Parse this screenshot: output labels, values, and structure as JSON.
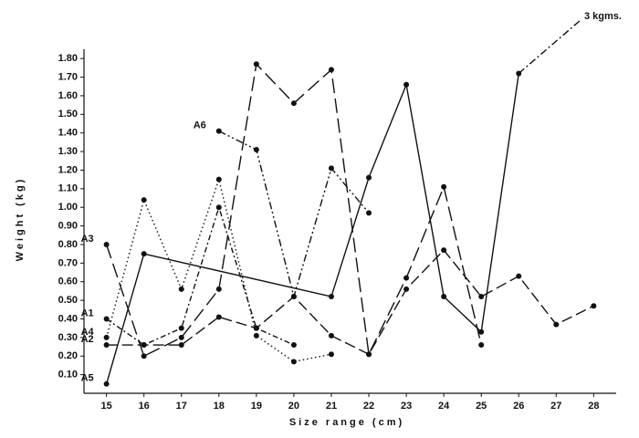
{
  "chart_data": {
    "type": "line",
    "ylabel": "Weight    (kg)",
    "xlabel": "Size  range  (cm)",
    "annotation": "3 kgms.",
    "xlim": [
      14.4,
      28.6
    ],
    "xticks": [
      15,
      16,
      17,
      18,
      19,
      20,
      21,
      22,
      23,
      24,
      25,
      26,
      27,
      28
    ],
    "ylim": [
      0,
      1.85
    ],
    "yticks": [
      {
        "value": 0.1,
        "label": "0.10"
      },
      {
        "value": 0.2,
        "label": "0.20"
      },
      {
        "value": 0.3,
        "label": "0.30"
      },
      {
        "value": 0.4,
        "label": "0.40"
      },
      {
        "value": 0.5,
        "label": "0.50"
      },
      {
        "value": 0.6,
        "label": "0.60"
      },
      {
        "value": 0.7,
        "label": "0.70"
      },
      {
        "value": 0.8,
        "label": "0.80"
      },
      {
        "value": 0.9,
        "label": "0.90"
      },
      {
        "value": 1.0,
        "label": "1.00"
      },
      {
        "value": 1.1,
        "label": "1.10"
      },
      {
        "value": 1.2,
        "label": "1.20"
      },
      {
        "value": 1.3,
        "label": "1.30"
      },
      {
        "value": 1.4,
        "label": "1.40"
      },
      {
        "value": 1.5,
        "label": "1.50"
      },
      {
        "value": 1.6,
        "label": "1.60"
      },
      {
        "value": 1.7,
        "label": "1.70"
      },
      {
        "value": 1.8,
        "label": "1.80"
      }
    ],
    "series": [
      {
        "name": "A1",
        "color": "#111111",
        "dash": "6,3,2,3",
        "x": [
          15,
          16,
          17,
          18,
          19,
          20
        ],
        "values": [
          0.4,
          0.26,
          0.35,
          1.0,
          0.35,
          0.26
        ]
      },
      {
        "name": "A2",
        "color": "#111111",
        "dash": "12,5",
        "x": [
          15,
          16,
          17,
          18,
          19,
          20,
          21,
          22,
          23,
          24,
          25,
          26,
          27,
          28
        ],
        "values": [
          0.26,
          0.26,
          0.26,
          0.41,
          0.35,
          0.52,
          0.31,
          0.21,
          0.56,
          0.77,
          0.52,
          0.63,
          0.37,
          0.47
        ]
      },
      {
        "name": "A3",
        "color": "#111111",
        "dash": "16,6",
        "x": [
          15,
          16,
          17,
          18,
          19,
          20,
          21,
          22,
          23,
          24,
          25
        ],
        "values": [
          0.8,
          0.2,
          0.3,
          0.56,
          1.77,
          1.56,
          1.74,
          0.21,
          0.62,
          1.11,
          0.26
        ]
      },
      {
        "name": "A4",
        "color": "#111111",
        "dash": "1.5,3",
        "x": [
          15,
          16,
          17,
          18,
          19,
          20,
          21
        ],
        "values": [
          0.3,
          1.04,
          0.56,
          1.15,
          0.31,
          0.17,
          0.21
        ]
      },
      {
        "name": "A5",
        "color": "#111111",
        "dash": "none",
        "x": [
          15,
          16,
          21,
          22,
          23,
          24,
          25,
          26
        ],
        "values": [
          0.05,
          0.75,
          0.52,
          1.16,
          1.66,
          0.52,
          0.33,
          1.72
        ]
      },
      {
        "name": "A6",
        "color": "#111111",
        "dash": "8,3,2,3,2,3",
        "x": [
          18,
          19,
          20,
          21,
          22
        ],
        "values": [
          1.41,
          1.31,
          0.52,
          1.21,
          0.97
        ]
      }
    ]
  }
}
